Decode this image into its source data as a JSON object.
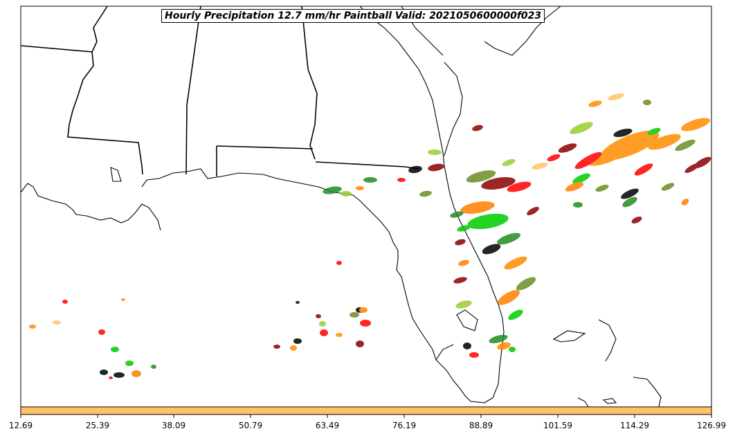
{
  "title": "Hourly Precipitation 12.7 mm/hr Paintball Valid: 2021050600000f023",
  "colorbar": {
    "fill": "#ffc266",
    "ticks": [
      "12.69",
      "25.39",
      "38.09",
      "50.79",
      "63.49",
      "76.19",
      "88.89",
      "101.59",
      "114.29",
      "126.99"
    ]
  },
  "member_colors": [
    "#e8e800",
    "#ff0000",
    "#00cc00",
    "#ff8000",
    "#8b0000",
    "#6b8e23",
    "#000000",
    "#ff8c00",
    "#228b22",
    "#9acd32"
  ]
}
